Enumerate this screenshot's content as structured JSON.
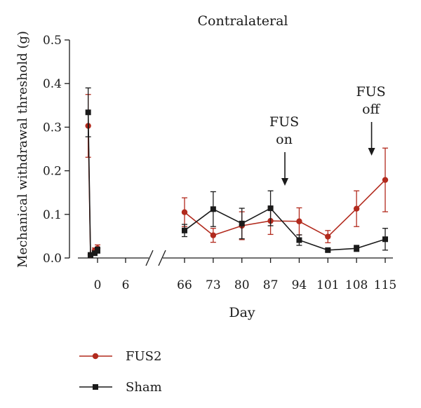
{
  "chart_data": {
    "type": "line",
    "title": "Contralateral",
    "xlabel": "Day",
    "ylabel": "Mechanical withdrawal threshold (g)",
    "ylim": [
      0,
      0.5
    ],
    "yticks": [
      "0.0",
      "0.1",
      "0.2",
      "0.3",
      "0.4",
      "0.5"
    ],
    "xticks": [
      "0",
      "6",
      "66",
      "73",
      "80",
      "87",
      "94",
      "101",
      "108",
      "115"
    ],
    "axis_break": "between 6 and 66",
    "grid": false,
    "legend_position": "bottom-left",
    "annotations": [
      {
        "line1": "FUS",
        "line2": "on",
        "between_days": [
          87,
          94
        ]
      },
      {
        "line1": "FUS",
        "line2": "off",
        "between_days": [
          108,
          115
        ]
      }
    ],
    "series": [
      {
        "name": "FUS2",
        "color": "#b22a1d",
        "marker": "circle",
        "segments": [
          [
            {
              "x": -2,
              "y": 0.303,
              "err": 0.072
            },
            {
              "x": -1.5,
              "y": 0.007,
              "err": 0.004
            },
            {
              "x": -0.6,
              "y": 0.017,
              "err": 0.006
            },
            {
              "x": 0,
              "y": 0.022,
              "err": 0.008
            }
          ],
          [
            {
              "x": 66,
              "y": 0.105,
              "err": 0.033
            },
            {
              "x": 73,
              "y": 0.052,
              "err": 0.016
            },
            {
              "x": 80,
              "y": 0.074,
              "err": 0.032
            },
            {
              "x": 87,
              "y": 0.085,
              "err": 0.031
            },
            {
              "x": 94,
              "y": 0.084,
              "err": 0.031
            },
            {
              "x": 101,
              "y": 0.049,
              "err": 0.014
            },
            {
              "x": 108,
              "y": 0.113,
              "err": 0.041
            },
            {
              "x": 115,
              "y": 0.179,
              "err": 0.073
            }
          ]
        ]
      },
      {
        "name": "Sham",
        "color": "#1a1a1a",
        "marker": "square",
        "segments": [
          [
            {
              "x": -2,
              "y": 0.334,
              "err": 0.056
            },
            {
              "x": -1.5,
              "y": 0.007,
              "err": 0.004
            },
            {
              "x": -0.6,
              "y": 0.011,
              "err": 0.004
            },
            {
              "x": 0,
              "y": 0.018,
              "err": 0.007
            }
          ],
          [
            {
              "x": 66,
              "y": 0.063,
              "err": 0.014
            },
            {
              "x": 73,
              "y": 0.112,
              "err": 0.04
            },
            {
              "x": 80,
              "y": 0.079,
              "err": 0.035
            },
            {
              "x": 87,
              "y": 0.114,
              "err": 0.04
            },
            {
              "x": 94,
              "y": 0.041,
              "err": 0.012
            },
            {
              "x": 101,
              "y": 0.018,
              "err": 0.003
            },
            {
              "x": 108,
              "y": 0.022,
              "err": 0.007
            },
            {
              "x": 115,
              "y": 0.043,
              "err": 0.025
            }
          ]
        ]
      }
    ]
  }
}
